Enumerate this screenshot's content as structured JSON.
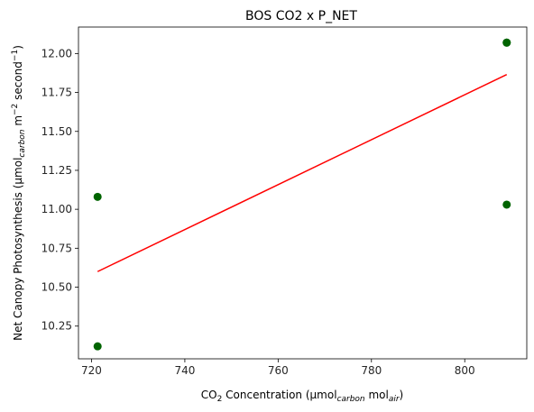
{
  "chart_data": {
    "type": "scatter",
    "title": "BOS CO2 x P_NET",
    "xlabel": {
      "pre": "CO",
      "sub1": "2",
      "mid": " Concentration (µmol",
      "sub2": "carbon",
      "mid2": " mol",
      "sub3": "air",
      "post": ")"
    },
    "ylabel": {
      "pre": "Net Canopy Photosynthesis (µmol",
      "sub1": "carbon",
      "mid": " m",
      "sup1": "−2",
      "mid2": " second",
      "sup2": "−1",
      "post": ")"
    },
    "xlim": [
      717.2,
      813.3
    ],
    "ylim": [
      10.04,
      12.17
    ],
    "xticks": [
      720,
      740,
      760,
      780,
      800
    ],
    "xtick_labels": [
      "720",
      "740",
      "760",
      "780",
      "800"
    ],
    "yticks": [
      10.25,
      10.5,
      10.75,
      11.0,
      11.25,
      11.5,
      11.75,
      12.0
    ],
    "ytick_labels": [
      "10.25",
      "10.50",
      "10.75",
      "11.00",
      "11.25",
      "11.50",
      "11.75",
      "12.00"
    ],
    "grid": false,
    "series": [
      {
        "kind": "points",
        "color": "#006400",
        "x": [
          721.3,
          721.3,
          809.0,
          809.0,
          809.0
        ],
        "y": [
          11.08,
          10.12,
          12.07,
          12.07,
          11.03
        ]
      },
      {
        "kind": "fit-line",
        "color": "#ff0000",
        "x": [
          721.3,
          809.0
        ],
        "y": [
          10.6,
          11.865
        ]
      }
    ]
  }
}
